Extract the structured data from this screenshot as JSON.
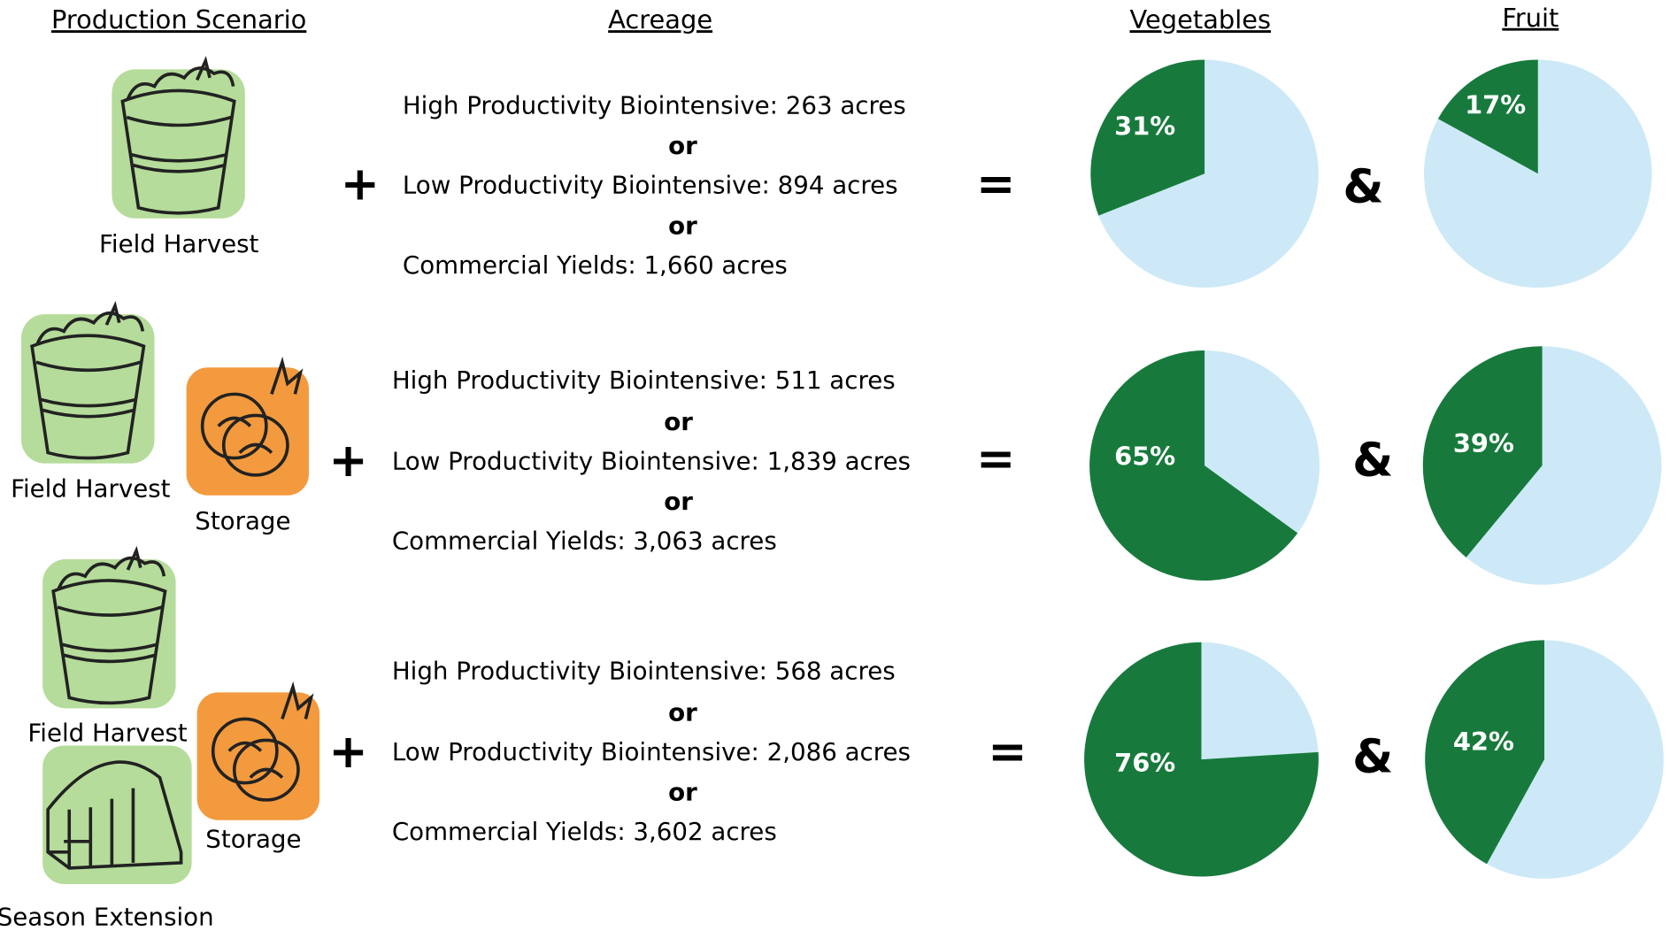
{
  "header": {
    "scenario": "Production Scenario",
    "acreage": "Acreage",
    "vegetables": "Vegetables",
    "fruit": "Fruit"
  },
  "symbols": {
    "plus": "+",
    "equals": "=",
    "and": "&",
    "or": "or"
  },
  "colors": {
    "share": "#177a3c",
    "rest": "#cde9f7"
  },
  "rows": [
    {
      "scenarios": [
        "Field Harvest"
      ],
      "acreage": [
        "High Productivity Biointensive: 263 acres",
        "Low Productivity Biointensive: 894 acres",
        "Commercial Yields: 1,660 acres"
      ],
      "vegetables": {
        "value": 31,
        "label": "31%"
      },
      "fruit": {
        "value": 17,
        "label": "17%"
      }
    },
    {
      "scenarios": [
        "Field Harvest",
        "Storage"
      ],
      "acreage": [
        "High Productivity Biointensive: 511 acres",
        "Low Productivity Biointensive: 1,839 acres",
        "Commercial Yields: 3,063 acres"
      ],
      "vegetables": {
        "value": 65,
        "label": "65%"
      },
      "fruit": {
        "value": 39,
        "label": "39%"
      }
    },
    {
      "scenarios": [
        "Field Harvest",
        "Storage",
        "Season Extension"
      ],
      "acreage": [
        "High Productivity Biointensive: 568 acres",
        "Low Productivity Biointensive: 2,086 acres",
        "Commercial Yields: 3,602 acres"
      ],
      "vegetables": {
        "value": 76,
        "label": "76%"
      },
      "fruit": {
        "value": 42,
        "label": "42%"
      }
    }
  ]
}
